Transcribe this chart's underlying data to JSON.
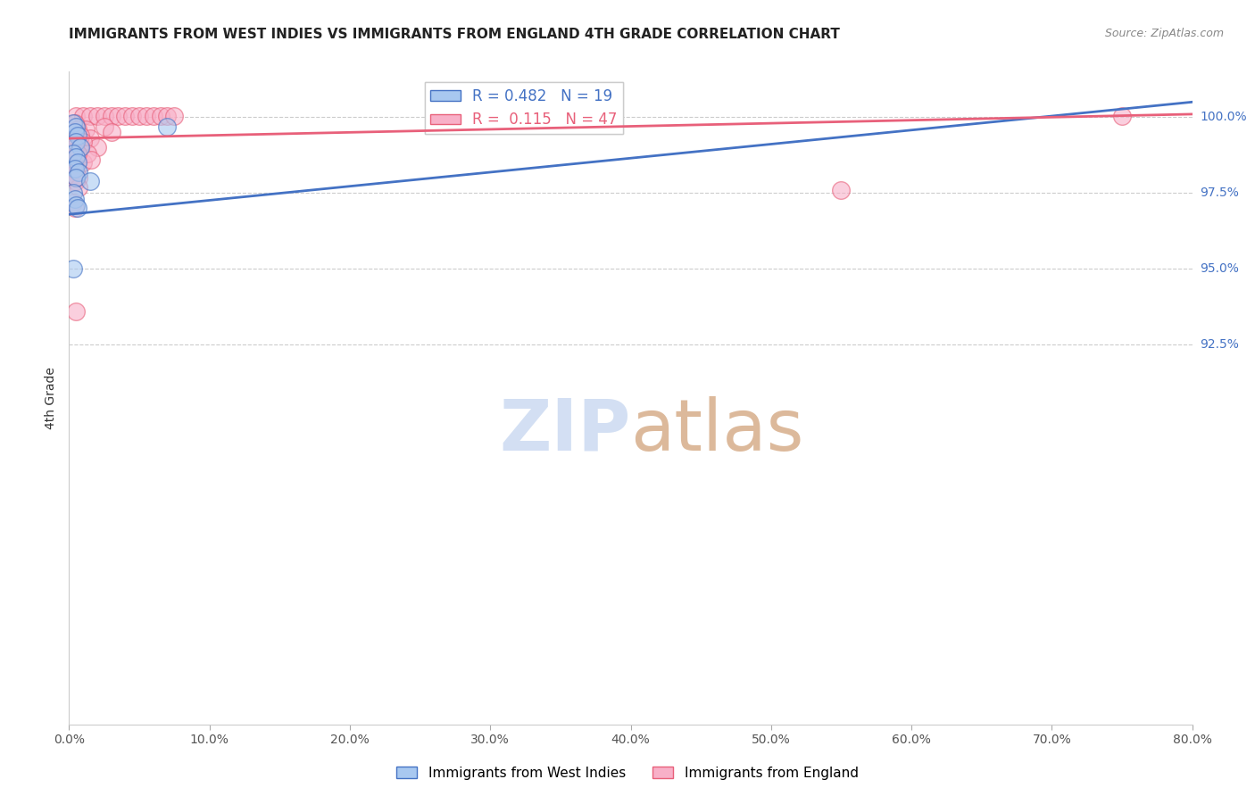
{
  "title": "IMMIGRANTS FROM WEST INDIES VS IMMIGRANTS FROM ENGLAND 4TH GRADE CORRELATION CHART",
  "source": "Source: ZipAtlas.com",
  "ylabel": "4th Grade",
  "legend_label_blue": "Immigrants from West Indies",
  "legend_label_pink": "Immigrants from England",
  "r_blue": 0.482,
  "n_blue": 19,
  "r_pink": 0.115,
  "n_pink": 47,
  "x_min": 0.0,
  "x_max": 80.0,
  "y_min": 80.0,
  "y_max": 101.5,
  "xtick_labels": [
    "0.0%",
    "10.0%",
    "20.0%",
    "30.0%",
    "40.0%",
    "50.0%",
    "60.0%",
    "70.0%",
    "80.0%"
  ],
  "xtick_vals": [
    0,
    10,
    20,
    30,
    40,
    50,
    60,
    70,
    80
  ],
  "ytick_labels_right": [
    "100.0%",
    "97.5%",
    "95.0%",
    "92.5%"
  ],
  "ytick_vals_right": [
    100.0,
    97.5,
    95.0,
    92.5
  ],
  "color_blue": "#A8C8F0",
  "color_pink": "#F8B0C8",
  "line_blue": "#4472C4",
  "line_pink": "#E8607A",
  "watermark_zip_color": "#C8D8F0",
  "watermark_atlas_color": "#D0A080",
  "title_color": "#222222",
  "right_tick_color": "#4472C4",
  "blue_scatter": [
    [
      0.3,
      99.8
    ],
    [
      0.5,
      99.7
    ],
    [
      0.4,
      99.5
    ],
    [
      0.6,
      99.4
    ],
    [
      0.5,
      99.2
    ],
    [
      0.8,
      99.0
    ],
    [
      0.3,
      98.8
    ],
    [
      0.5,
      98.7
    ],
    [
      0.6,
      98.5
    ],
    [
      0.4,
      98.3
    ],
    [
      0.7,
      98.2
    ],
    [
      0.5,
      98.0
    ],
    [
      1.5,
      97.9
    ],
    [
      0.3,
      97.5
    ],
    [
      0.4,
      97.3
    ],
    [
      0.5,
      97.1
    ],
    [
      0.6,
      97.0
    ],
    [
      0.3,
      95.0
    ],
    [
      7.0,
      99.7
    ]
  ],
  "pink_scatter": [
    [
      0.5,
      100.05
    ],
    [
      1.0,
      100.05
    ],
    [
      1.5,
      100.05
    ],
    [
      2.0,
      100.05
    ],
    [
      2.5,
      100.05
    ],
    [
      3.0,
      100.05
    ],
    [
      3.5,
      100.05
    ],
    [
      4.0,
      100.05
    ],
    [
      4.5,
      100.05
    ],
    [
      5.0,
      100.05
    ],
    [
      5.5,
      100.05
    ],
    [
      6.0,
      100.05
    ],
    [
      6.5,
      100.05
    ],
    [
      7.0,
      100.05
    ],
    [
      7.5,
      100.05
    ],
    [
      0.3,
      99.5
    ],
    [
      0.5,
      99.3
    ],
    [
      0.8,
      99.1
    ],
    [
      0.4,
      98.9
    ],
    [
      0.6,
      98.7
    ],
    [
      1.0,
      98.5
    ],
    [
      0.3,
      98.4
    ],
    [
      0.5,
      98.2
    ],
    [
      0.7,
      98.0
    ],
    [
      1.2,
      99.6
    ],
    [
      1.5,
      99.3
    ],
    [
      2.0,
      99.0
    ],
    [
      0.4,
      99.8
    ],
    [
      0.6,
      99.6
    ],
    [
      0.8,
      99.4
    ],
    [
      1.0,
      99.2
    ],
    [
      1.3,
      98.8
    ],
    [
      1.6,
      98.6
    ],
    [
      0.3,
      98.1
    ],
    [
      0.5,
      97.9
    ],
    [
      0.7,
      97.7
    ],
    [
      2.5,
      99.7
    ],
    [
      3.0,
      99.5
    ],
    [
      0.4,
      99.0
    ],
    [
      0.6,
      98.8
    ],
    [
      0.3,
      98.3
    ],
    [
      0.5,
      98.0
    ],
    [
      55.0,
      97.6
    ],
    [
      75.0,
      100.05
    ],
    [
      0.5,
      93.6
    ],
    [
      0.3,
      97.2
    ],
    [
      0.4,
      97.0
    ]
  ],
  "blue_trendline_x": [
    0.0,
    80.0
  ],
  "blue_trendline_y": [
    96.8,
    100.5
  ],
  "pink_trendline_x": [
    0.0,
    80.0
  ],
  "pink_trendline_y": [
    99.3,
    100.1
  ]
}
